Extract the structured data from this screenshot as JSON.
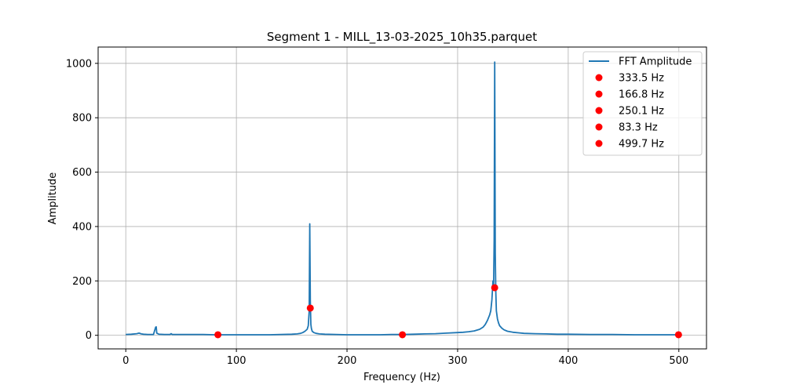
{
  "chart_data": {
    "type": "line",
    "title": "Segment 1 - MILL_13-03-2025_10h35.parquet",
    "xlabel": "Frequency (Hz)",
    "ylabel": "Amplitude",
    "xlim": [
      -25,
      525
    ],
    "ylim": [
      -50,
      1060
    ],
    "xticks": [
      0,
      100,
      200,
      300,
      400,
      500
    ],
    "yticks": [
      0,
      200,
      400,
      600,
      800,
      1000
    ],
    "grid": true,
    "legend_position": "top-right",
    "series": [
      {
        "name": "FFT Amplitude",
        "color": "#1f77b4",
        "x": [
          0,
          5,
          10,
          12,
          14,
          16,
          20,
          25,
          27,
          27.5,
          28,
          30,
          35,
          40,
          41,
          42,
          50,
          60,
          70,
          80,
          90,
          100,
          110,
          120,
          130,
          140,
          150,
          155,
          158,
          160,
          162,
          164,
          165,
          165.8,
          166.3,
          166.8,
          167.3,
          167.8,
          168.5,
          170,
          172,
          175,
          180,
          190,
          200,
          210,
          220,
          230,
          240,
          250,
          260,
          270,
          280,
          290,
          300,
          305,
          310,
          315,
          320,
          323,
          325,
          327,
          329,
          330,
          331,
          332,
          332.5,
          333,
          333.5,
          334,
          334.5,
          335,
          336,
          337,
          338,
          340,
          342,
          345,
          350,
          355,
          360,
          370,
          380,
          390,
          400,
          420,
          440,
          460,
          480,
          500
        ],
        "y": [
          3,
          4,
          6,
          8,
          5,
          4,
          3,
          3,
          30,
          31,
          8,
          4,
          3,
          3,
          6,
          3,
          3,
          3,
          3,
          2,
          2,
          2,
          2,
          2,
          2,
          3,
          4,
          5,
          7,
          10,
          15,
          22,
          35,
          90,
          410,
          130,
          40,
          25,
          15,
          10,
          7,
          5,
          4,
          3,
          2,
          2,
          2,
          2,
          3,
          3,
          4,
          5,
          6,
          8,
          10,
          11,
          13,
          16,
          22,
          30,
          40,
          55,
          75,
          90,
          130,
          200,
          180,
          350,
          1005,
          300,
          160,
          90,
          60,
          45,
          35,
          26,
          20,
          15,
          11,
          9,
          7,
          6,
          5,
          4,
          4,
          3,
          3,
          2,
          2,
          2
        ]
      }
    ],
    "markers": [
      {
        "label": "333.5 Hz",
        "x": 333.5,
        "y": 175,
        "color": "#ff0000"
      },
      {
        "label": "166.8 Hz",
        "x": 166.8,
        "y": 100,
        "color": "#ff0000"
      },
      {
        "label": "250.1 Hz",
        "x": 250.1,
        "y": 2,
        "color": "#ff0000"
      },
      {
        "label": "83.3 Hz",
        "x": 83.3,
        "y": 2,
        "color": "#ff0000"
      },
      {
        "label": "499.7 Hz",
        "x": 499.7,
        "y": 2,
        "color": "#ff0000"
      }
    ]
  }
}
